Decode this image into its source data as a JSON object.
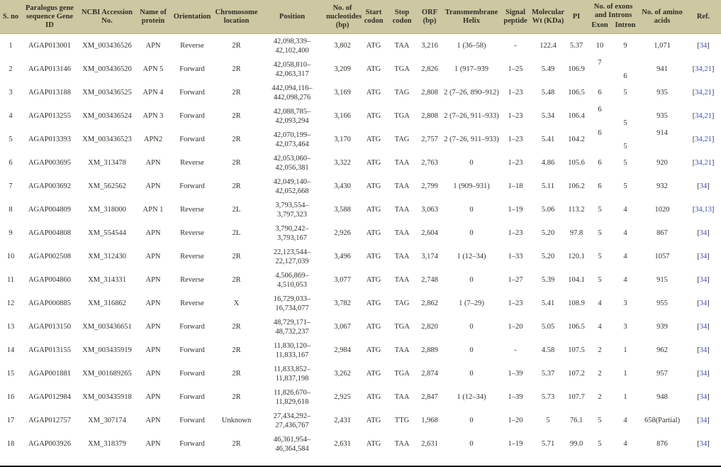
{
  "colors": {
    "header_bg": "#cdc7a2",
    "body_text": "#32312b",
    "ref_link_blue": "#3d4fc3"
  },
  "table": {
    "header": {
      "sno": "S. no",
      "gene_id": "Paralogus gene sequence Gene ID",
      "accession": "NCBI Accession No.",
      "protein": "Name of protein",
      "orientation": "Orientation",
      "chromosome": "Chromosome location",
      "position": "Position",
      "nucleotides": "No. of nucleotides (bp)",
      "start_codon": "Start codon",
      "stop_codon": "Stop codon",
      "orf": "ORF (bp)",
      "tm_helix": "Transmembrane Helix",
      "signal_peptide": "Signal peptide",
      "mol_wt": "Molecular Wt (KDa)",
      "pi": "PI",
      "exons_introns_group": "No. of exons and Introns",
      "exon": "Exon",
      "intron": "Intron",
      "amino_acids": "No. of amino acids",
      "ref": "Ref."
    },
    "rows": [
      {
        "sno": "1",
        "gene_id": "AGAP013001",
        "accession": "XM_003436526",
        "protein": "APN",
        "orientation": "Reverse",
        "chromosome": "2R",
        "position": [
          "42,098,339–",
          "42,102,400"
        ],
        "nucleotides": "3,802",
        "start_codon": "ATG",
        "stop_codon": "TAA",
        "orf": "3,216",
        "tm_helix": "1 (36–58)",
        "signal_peptide": "-",
        "mol_wt": "122.4",
        "pi": "5.37",
        "exon": "10",
        "intron": "9",
        "amino_acids": "1,071",
        "ref": "[34]"
      },
      {
        "sno": "2",
        "gene_id": "AGAP013146",
        "accession": "XM_003436520",
        "protein": "APN 5",
        "orientation": "Forward",
        "chromosome": "2R",
        "position": [
          "42,058,810–",
          "42,063,317"
        ],
        "nucleotides": "3,209",
        "start_codon": "ATG",
        "stop_codon": "TGA",
        "orf": "2,826",
        "tm_helix": "1 (917–939",
        "signal_peptide": "1–25",
        "mol_wt": "5.49",
        "pi": "106.9",
        "exon": "7",
        "intron": "6",
        "amino_acids": "941",
        "ref": "[34,21]",
        "stagger": true
      },
      {
        "sno": "3",
        "gene_id": "AGAP013188",
        "accession": "XM_003436525",
        "protein": "APN 4",
        "orientation": "Forward",
        "chromosome": "2R",
        "position": [
          "442,094,116–",
          "442,098,276"
        ],
        "nucleotides": "3,169",
        "start_codon": "ATG",
        "stop_codon": "TAG",
        "orf": "2,808",
        "tm_helix": "2 (7–26, 890–912)",
        "signal_peptide": "1–23",
        "mol_wt": "5.48",
        "pi": "106.5",
        "exon": "6",
        "intron": "5",
        "amino_acids": "935",
        "ref": "[34,21]"
      },
      {
        "sno": "4",
        "gene_id": "AGAP013255",
        "accession": "XM_003436524",
        "protein": "APN 3",
        "orientation": "Forward",
        "chromosome": "2R",
        "position": [
          "42,088,785–",
          "42,093,294"
        ],
        "nucleotides": "3,166",
        "start_codon": "ATG",
        "stop_codon": "TGA",
        "orf": "2,808",
        "tm_helix": "2 (7–26, 911–933)",
        "signal_peptide": "1–23",
        "mol_wt": "5.34",
        "pi": "106.4",
        "exon": "6",
        "intron": "5",
        "amino_acids": "935",
        "ref": "[34,21]",
        "stagger": true
      },
      {
        "sno": "5",
        "gene_id": "AGAP013393",
        "accession": "XM_003436523",
        "protein": "APN2",
        "orientation": "Forward",
        "chromosome": "2R",
        "position": [
          "42,070,199–",
          "42,073,464"
        ],
        "nucleotides": "3,170",
        "start_codon": "ATG",
        "stop_codon": "TAG",
        "orf": "2,757",
        "tm_helix": "2 (7–26, 911–933)",
        "signal_peptide": "1–23",
        "mol_wt": "5.41",
        "pi": "104.2",
        "exon": "6",
        "intron": "5",
        "amino_acids": "914",
        "ref": "[34,21]",
        "stagger": true,
        "aa_up": true
      },
      {
        "sno": "6",
        "gene_id": "AGAP003695",
        "accession": "XM_313478",
        "protein": "APN",
        "orientation": "Reverse",
        "chromosome": "2R",
        "position": [
          "42,053,060–",
          "42,056,381"
        ],
        "nucleotides": "3,322",
        "start_codon": "ATG",
        "stop_codon": "TAA",
        "orf": "2,763",
        "tm_helix": "0",
        "signal_peptide": "1–23",
        "mol_wt": "4.86",
        "pi": "105.6",
        "exon": "6",
        "intron": "5",
        "amino_acids": "920",
        "ref": "[34,21]"
      },
      {
        "sno": "7",
        "gene_id": "AGAP003692",
        "accession": "XM_562562",
        "protein": "APN",
        "orientation": "Forward",
        "chromosome": "2R",
        "position": [
          "42,049,140–",
          "42,052,668"
        ],
        "nucleotides": "3,430",
        "start_codon": "ATG",
        "stop_codon": "TAA",
        "orf": "2,799",
        "tm_helix": "1 (909–931)",
        "signal_peptide": "1–18",
        "mol_wt": "5.11",
        "pi": "106.2",
        "exon": "6",
        "intron": "5",
        "amino_acids": "932",
        "ref": "[34]"
      },
      {
        "sno": "8",
        "gene_id": "AGAP004809",
        "accession": "XM_318000",
        "protein": "APN 1",
        "orientation": "Reverse",
        "chromosome": "2L",
        "position": [
          "3,793,554–",
          "3,797,323"
        ],
        "nucleotides": "3,588",
        "start_codon": "ATG",
        "stop_codon": "TAA",
        "orf": "3,063",
        "tm_helix": "0",
        "signal_peptide": "1–19",
        "mol_wt": "5.06",
        "pi": "113.2",
        "exon": "5",
        "intron": "4",
        "amino_acids": "1020",
        "ref": "[34,13]"
      },
      {
        "sno": "9",
        "gene_id": "AGAP004808",
        "accession": "XM_554544",
        "protein": "APN",
        "orientation": "Reverse",
        "chromosome": "2L",
        "position": [
          "3,790,242–",
          "3,793,167"
        ],
        "nucleotides": "2,926",
        "start_codon": "ATG",
        "stop_codon": "TAA",
        "orf": "2,604",
        "tm_helix": "0",
        "signal_peptide": "1–23",
        "mol_wt": "5.20",
        "pi": "97.8",
        "exon": "5",
        "intron": "4",
        "amino_acids": "867",
        "ref": "[34]"
      },
      {
        "sno": "10",
        "gene_id": "AGAP002508",
        "accession": "XM_312430",
        "protein": "APN",
        "orientation": "Reverse",
        "chromosome": "2R",
        "position": [
          "22,123,544–",
          "22,127,039"
        ],
        "nucleotides": "3,496",
        "start_codon": "ATG",
        "stop_codon": "TAA",
        "orf": "3,174",
        "tm_helix": "1 (12–34)",
        "signal_peptide": "1–33",
        "mol_wt": "5.20",
        "pi": "120.1",
        "exon": "5",
        "intron": "4",
        "amino_acids": "1057",
        "ref": "[34]"
      },
      {
        "sno": "11",
        "gene_id": "AGAP004860",
        "accession": "XM_314331",
        "protein": "APN",
        "orientation": "Reverse",
        "chromosome": "2R",
        "position": [
          "4,506,869–",
          "4,510,053"
        ],
        "nucleotides": "3,077",
        "start_codon": "ATG",
        "stop_codon": "TAA",
        "orf": "2,748",
        "tm_helix": "0",
        "signal_peptide": "1–27",
        "mol_wt": "5.39",
        "pi": "104.1",
        "exon": "5",
        "intron": "4",
        "amino_acids": "915",
        "ref": "[34]"
      },
      {
        "sno": "12",
        "gene_id": "AGAP000885",
        "accession": "XM_316862",
        "protein": "APN",
        "orientation": "Reverse",
        "chromosome": "X",
        "position": [
          "16,729,033–",
          "16,734,077"
        ],
        "nucleotides": "3,782",
        "start_codon": "ATG",
        "stop_codon": "TAG",
        "orf": "2,862",
        "tm_helix": "1 (7–29)",
        "signal_peptide": "1–23",
        "mol_wt": "5.41",
        "pi": "108.9",
        "exon": "4",
        "intron": "3",
        "amino_acids": "955",
        "ref": "[34]"
      },
      {
        "sno": "13",
        "gene_id": "AGAP013150",
        "accession": "XM_003436651",
        "protein": "APN",
        "orientation": "Forward",
        "chromosome": "2R",
        "position": [
          "48,729,171–",
          "48,732,237"
        ],
        "nucleotides": "3,067",
        "start_codon": "ATG",
        "stop_codon": "TGA",
        "orf": "2,820",
        "tm_helix": "0",
        "signal_peptide": "1–20",
        "mol_wt": "5.05",
        "pi": "106.5",
        "exon": "4",
        "intron": "3",
        "amino_acids": "939",
        "ref": "[34]"
      },
      {
        "sno": "14",
        "gene_id": "AGAP013155",
        "accession": "XM_003435919",
        "protein": "APN",
        "orientation": "Forward",
        "chromosome": "2R",
        "position": [
          "11,830,120–",
          "11,833,167"
        ],
        "nucleotides": "2,984",
        "start_codon": "ATG",
        "stop_codon": "TAA",
        "orf": "2,889",
        "tm_helix": "0",
        "signal_peptide": "-",
        "mol_wt": "4.58",
        "pi": "107.5",
        "exon": "2",
        "intron": "1",
        "amino_acids": "962",
        "ref": "[34]"
      },
      {
        "sno": "15",
        "gene_id": "AGAP001881",
        "accession": "XM_001689265",
        "protein": "APN",
        "orientation": "Forward",
        "chromosome": "2R",
        "position": [
          "11,833,852–",
          "11,837,198"
        ],
        "nucleotides": "3,262",
        "start_codon": "ATG",
        "stop_codon": "TGA",
        "orf": "2,874",
        "tm_helix": "0",
        "signal_peptide": "1–39",
        "mol_wt": "5.37",
        "pi": "107.2",
        "exon": "2",
        "intron": "1",
        "amino_acids": "957",
        "ref": "[34]"
      },
      {
        "sno": "16",
        "gene_id": "AGAP012984",
        "accession": "XM_003435918",
        "protein": "APN",
        "orientation": "Forward",
        "chromosome": "2R",
        "position": [
          "11,826,670–",
          "11,829,618"
        ],
        "nucleotides": "2,925",
        "start_codon": "ATG",
        "stop_codon": "TAA",
        "orf": "2,847",
        "tm_helix": "1 (12–34)",
        "signal_peptide": "1–39",
        "mol_wt": "5.73",
        "pi": "107.7",
        "exon": "2",
        "intron": "1",
        "amino_acids": "948",
        "ref": "[34]"
      },
      {
        "sno": "17",
        "gene_id": "AGAP012757",
        "accession": "XM_307174",
        "protein": "APN",
        "orientation": "Forward",
        "chromosome": "Unknown",
        "position": [
          "27,434,292–",
          "27,436,767"
        ],
        "nucleotides": "2,431",
        "start_codon": "ATG",
        "stop_codon": "TTG",
        "orf": "1,968",
        "tm_helix": "0",
        "signal_peptide": "1–20",
        "mol_wt": "5",
        "pi": "76.1",
        "exon": "5",
        "intron": "4",
        "amino_acids": "658(Partial)",
        "ref": "[34]"
      },
      {
        "sno": "18",
        "gene_id": "AGAP003926",
        "accession": "XM_318379",
        "protein": "APN",
        "orientation": "Forward",
        "chromosome": "2R",
        "position": [
          "46,361,954–",
          "46,364,584"
        ],
        "nucleotides": "2,631",
        "start_codon": "ATG",
        "stop_codon": "TAA",
        "orf": "2,631",
        "tm_helix": "0",
        "signal_peptide": "1–19",
        "mol_wt": "5.71",
        "pi": "99.0",
        "exon": "5",
        "intron": "4",
        "amino_acids": "876",
        "ref": "[34]"
      }
    ]
  }
}
